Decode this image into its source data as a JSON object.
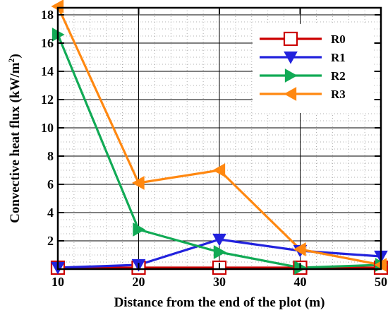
{
  "chart_data": {
    "type": "line",
    "xlabel": "Distance from the end of the plot (m)",
    "ylabel": "Convective heat flux (kW/m",
    "ylabel_sup": "2",
    "ylabel_close": ")",
    "xlim": [
      10,
      50
    ],
    "ylim": [
      0,
      18.5
    ],
    "x_ticks": [
      10,
      20,
      30,
      40,
      50
    ],
    "y_ticks": [
      2,
      4,
      6,
      8,
      10,
      12,
      14,
      16,
      18
    ],
    "grid": true,
    "legend_position": "top-right",
    "x": [
      10,
      20,
      30,
      40,
      50
    ],
    "series": [
      {
        "name": "R0",
        "color": "#cc0000",
        "marker": "square-open",
        "values": [
          0.1,
          0.1,
          0.1,
          0.1,
          0.1
        ]
      },
      {
        "name": "R1",
        "color": "#2222dd",
        "marker": "triangle-down",
        "values": [
          0.1,
          0.3,
          2.1,
          1.3,
          0.9
        ]
      },
      {
        "name": "R2",
        "color": "#11aa55",
        "marker": "triangle-right",
        "values": [
          16.6,
          2.8,
          1.2,
          0.1,
          0.3
        ]
      },
      {
        "name": "R3",
        "color": "#ff8811",
        "marker": "triangle-left",
        "values": [
          18.6,
          6.1,
          7.0,
          1.4,
          0.3
        ]
      }
    ]
  }
}
